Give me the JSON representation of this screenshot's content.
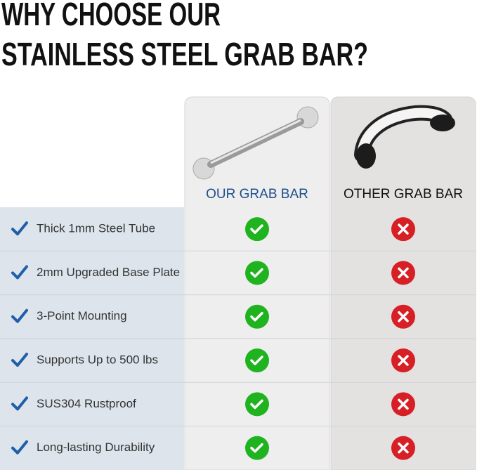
{
  "title_lines": [
    "WHY CHOOSE OUR",
    "STAINLESS STEEL GRAB BAR?"
  ],
  "columns": [
    "OUR GRAB BAR",
    "OTHER GRAB BAR"
  ],
  "rows": [
    "Thick 1mm Steel Tube",
    "2mm Upgraded Base Plate",
    "3-Point Mounting",
    "Supports Up to 500 lbs",
    "SUS304 Rustproof",
    "Long-lasting Durability"
  ]
}
